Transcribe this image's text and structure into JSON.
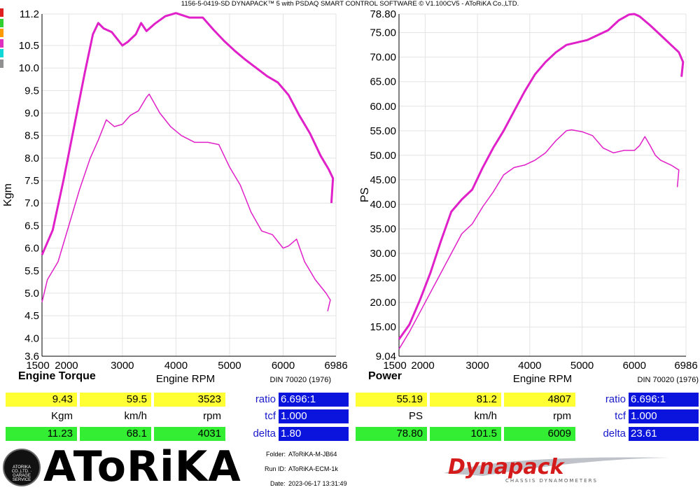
{
  "header": "1156-5-0419-SD DYNAPACK™ 5 with PSDAQ SMART CONTROL SOFTWARE © V1.100CV5 - AToRiKA Co.,LTD.",
  "colors": {
    "curve": "#e020c8",
    "stripes": [
      "#e02020",
      "#30d030",
      "#ff9a00",
      "#e030c0",
      "#10d8d8",
      "#909090"
    ],
    "yellow": "#ffff33",
    "green": "#33ee33",
    "blue": "#0a14dc"
  },
  "torque_panel": {
    "title": "Engine Torque",
    "xlabel": "Engine RPM",
    "ylabel": "Kgm",
    "standard": "DIN 70020 (1976)",
    "row1": {
      "v1": "9.43",
      "v2": "59.5",
      "v3": "3523",
      "label": "ratio",
      "val": "6.696:1"
    },
    "row2": {
      "u1": "Kgm",
      "u2": "km/h",
      "u3": "rpm",
      "label": "tcf",
      "val": "1.000"
    },
    "row3": {
      "v1": "11.23",
      "v2": "68.1",
      "v3": "4031",
      "label": "delta",
      "val": "1.80"
    }
  },
  "power_panel": {
    "title": "Power",
    "xlabel": "Engine RPM",
    "ylabel": "PS",
    "standard": "DIN 70020 (1976)",
    "row1": {
      "v1": "55.19",
      "v2": "81.2",
      "v3": "4807",
      "label": "ratio",
      "val": "6.696:1"
    },
    "row2": {
      "u1": "PS",
      "u2": "km/h",
      "u3": "rpm",
      "label": "tcf",
      "val": "1.000"
    },
    "row3": {
      "v1": "78.80",
      "v2": "101.5",
      "v3": "6009",
      "label": "delta",
      "val": "23.61"
    }
  },
  "footer": {
    "folder_label": "Folder:",
    "folder": "AToRiKA-M-JB64",
    "run_label": "Run ID:",
    "run": "AToRiKA-ECM-1k",
    "date_label": "Date:",
    "date": "2023-06-17 13:31:49",
    "logo": "AToRiKA",
    "badge": "ATORIKA CO.,LTD. · GARAGE SERVICE",
    "dynapack_logo": "Dynapack",
    "dynapack_sub": "CHASSIS DYNAMOMETERS"
  },
  "chart_data": [
    {
      "type": "line",
      "xlabel": "Engine RPM",
      "ylabel": "Kgm",
      "title": "Engine Torque",
      "xlim": [
        1500,
        6986
      ],
      "ylim": [
        3.6,
        11.2
      ],
      "xticks": [
        1500,
        2000,
        3000,
        4000,
        5000,
        6000,
        6986
      ],
      "yticks": [
        3.6,
        4.0,
        4.5,
        5.0,
        5.5,
        6.0,
        6.5,
        7.0,
        7.5,
        8.0,
        8.5,
        9.0,
        9.5,
        10.0,
        10.5,
        11.2
      ],
      "grid": true,
      "series": [
        {
          "x": [
            1500,
            1700,
            1900,
            2100,
            2300,
            2450,
            2550,
            2650,
            2800,
            3000,
            3100,
            3250,
            3350,
            3450,
            3600,
            3800,
            4000,
            4250,
            4500,
            4700,
            4900,
            5100,
            5300,
            5500,
            5700,
            5900,
            6100,
            6300,
            6500,
            6700,
            6850,
            6930,
            6900
          ],
          "y": [
            5.85,
            6.4,
            7.5,
            8.7,
            9.9,
            10.75,
            11.0,
            10.88,
            10.8,
            10.5,
            10.58,
            10.75,
            11.0,
            10.82,
            10.98,
            11.15,
            11.22,
            11.12,
            11.12,
            10.85,
            10.6,
            10.38,
            10.18,
            10.0,
            9.82,
            9.68,
            9.4,
            8.95,
            8.55,
            8.05,
            7.75,
            7.55,
            7.0
          ]
        },
        {
          "x": [
            1500,
            1600,
            1800,
            2000,
            2200,
            2400,
            2550,
            2700,
            2850,
            3000,
            3150,
            3300,
            3450,
            3500,
            3700,
            3900,
            4100,
            4350,
            4600,
            4800,
            5000,
            5200,
            5400,
            5600,
            5800,
            6000,
            6100,
            6250,
            6400,
            6600,
            6800,
            6880,
            6830
          ],
          "y": [
            4.8,
            5.3,
            5.7,
            6.5,
            7.3,
            8.0,
            8.4,
            8.85,
            8.7,
            8.75,
            8.95,
            9.05,
            9.35,
            9.42,
            9.0,
            8.7,
            8.5,
            8.35,
            8.35,
            8.3,
            7.8,
            7.4,
            6.8,
            6.38,
            6.3,
            6.0,
            6.05,
            6.2,
            5.7,
            5.3,
            5.0,
            4.85,
            4.6
          ]
        }
      ]
    },
    {
      "type": "line",
      "xlabel": "Engine RPM",
      "ylabel": "PS",
      "title": "Power",
      "xlim": [
        1500,
        6986
      ],
      "ylim": [
        9.04,
        78.8
      ],
      "xticks": [
        1500,
        2000,
        3000,
        4000,
        5000,
        6000,
        6986
      ],
      "yticks": [
        9.04,
        15.0,
        20.0,
        25.0,
        30.0,
        35.0,
        40.0,
        45.0,
        50.0,
        55.0,
        60.0,
        65.0,
        70.0,
        75.0,
        78.8
      ],
      "grid": true,
      "series": [
        {
          "x": [
            1500,
            1700,
            1900,
            2100,
            2300,
            2500,
            2700,
            2900,
            3100,
            3300,
            3500,
            3700,
            3900,
            4100,
            4300,
            4500,
            4700,
            4900,
            5100,
            5300,
            5500,
            5700,
            5900,
            6000,
            6100,
            6300,
            6500,
            6700,
            6850,
            6930,
            6900
          ],
          "y": [
            12.5,
            15.5,
            20.5,
            26.0,
            32.5,
            38.5,
            41.0,
            43.0,
            47.5,
            51.5,
            55.0,
            59.0,
            63.0,
            66.5,
            69.0,
            71.0,
            72.5,
            73.0,
            73.5,
            74.5,
            75.5,
            77.5,
            78.7,
            78.8,
            78.3,
            76.5,
            74.5,
            72.5,
            71.0,
            69.0,
            66.0
          ]
        },
        {
          "x": [
            1500,
            1700,
            1900,
            2100,
            2300,
            2500,
            2700,
            2900,
            3100,
            3300,
            3500,
            3700,
            3900,
            4100,
            4300,
            4500,
            4700,
            4800,
            5000,
            5200,
            5400,
            5600,
            5800,
            6000,
            6100,
            6200,
            6300,
            6400,
            6500,
            6700,
            6850,
            6820
          ],
          "y": [
            10.5,
            14.0,
            18.0,
            22.0,
            26.0,
            30.0,
            34.0,
            36.0,
            39.5,
            42.5,
            46.0,
            47.5,
            48.0,
            49.0,
            50.5,
            53.0,
            55.0,
            55.19,
            54.8,
            54.0,
            51.5,
            50.5,
            51.0,
            51.0,
            52.0,
            53.8,
            52.0,
            50.0,
            49.0,
            48.0,
            47.0,
            43.5
          ]
        }
      ]
    }
  ]
}
